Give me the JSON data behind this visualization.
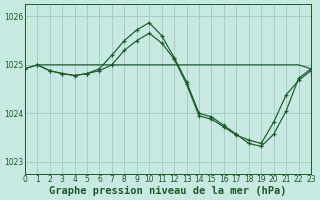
{
  "bg_color": "#c8e8e2",
  "grid_color": "#a0c8c0",
  "line_color": "#1a5c28",
  "xlabel": "Graphe pression niveau de la mer (hPa)",
  "xlabel_fontsize": 7.5,
  "xlim": [
    0,
    23
  ],
  "ylim": [
    1022.75,
    1026.25
  ],
  "yticks": [
    1023,
    1024,
    1025,
    1026
  ],
  "xticks": [
    0,
    1,
    2,
    3,
    4,
    5,
    6,
    7,
    8,
    9,
    10,
    11,
    12,
    13,
    14,
    15,
    16,
    17,
    18,
    19,
    20,
    21,
    22,
    23
  ],
  "line_flat_x": [
    0,
    1,
    2,
    3,
    4,
    5,
    6,
    7,
    8,
    9,
    10,
    11,
    12,
    13,
    14,
    15,
    16,
    17,
    18,
    19,
    20,
    21,
    22,
    23
  ],
  "line_flat_y": [
    1024.92,
    1025.0,
    1025.0,
    1025.0,
    1025.0,
    1025.0,
    1025.0,
    1025.0,
    1025.0,
    1025.0,
    1025.0,
    1025.0,
    1025.0,
    1025.0,
    1025.0,
    1025.0,
    1025.0,
    1025.0,
    1025.0,
    1025.0,
    1025.0,
    1025.0,
    1025.0,
    1024.92
  ],
  "line_high_x": [
    0,
    1,
    2,
    3,
    4,
    5,
    6,
    7,
    8,
    9,
    10,
    11,
    12,
    13,
    14,
    15,
    16,
    17,
    18,
    19,
    20,
    21,
    22,
    23
  ],
  "line_high_y": [
    1024.92,
    1025.0,
    1024.88,
    1024.82,
    1024.78,
    1024.82,
    1024.92,
    1025.2,
    1025.5,
    1025.72,
    1025.87,
    1025.6,
    1025.15,
    1024.65,
    1024.0,
    1023.93,
    1023.75,
    1023.57,
    1023.38,
    1023.32,
    1023.57,
    1024.05,
    1024.72,
    1024.92
  ],
  "line_mid_x": [
    1,
    2,
    3,
    4,
    5,
    6,
    7,
    8,
    9,
    10,
    11,
    12,
    13,
    14,
    15,
    16,
    17,
    18,
    19,
    20,
    21,
    22,
    23
  ],
  "line_mid_y": [
    1025.0,
    1024.88,
    1024.82,
    1024.78,
    1024.82,
    1024.88,
    1025.0,
    1025.3,
    1025.5,
    1025.65,
    1025.45,
    1025.12,
    1024.6,
    1023.95,
    1023.88,
    1023.72,
    1023.55,
    1023.45,
    1023.38,
    1023.82,
    1024.38,
    1024.68,
    1024.88
  ]
}
